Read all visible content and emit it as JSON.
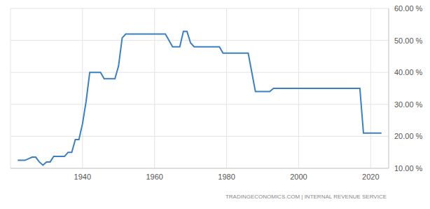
{
  "chart_data": {
    "type": "line",
    "source": "TRADINGECONOMICS.COM | INTERNAL REVENUE SERVICE",
    "x": [
      1922,
      1923,
      1924,
      1925,
      1926,
      1927,
      1928,
      1929,
      1930,
      1931,
      1932,
      1933,
      1934,
      1935,
      1936,
      1937,
      1938,
      1939,
      1940,
      1941,
      1942,
      1943,
      1944,
      1945,
      1946,
      1947,
      1948,
      1949,
      1950,
      1951,
      1952,
      1953,
      1954,
      1955,
      1956,
      1957,
      1958,
      1959,
      1960,
      1961,
      1962,
      1963,
      1964,
      1965,
      1966,
      1967,
      1968,
      1969,
      1970,
      1971,
      1972,
      1973,
      1974,
      1975,
      1976,
      1977,
      1978,
      1979,
      1980,
      1981,
      1982,
      1983,
      1984,
      1985,
      1986,
      1987,
      1988,
      1989,
      1990,
      1991,
      1992,
      1993,
      1994,
      1995,
      1996,
      1997,
      1998,
      1999,
      2000,
      2001,
      2002,
      2003,
      2004,
      2005,
      2006,
      2007,
      2008,
      2009,
      2010,
      2011,
      2012,
      2013,
      2014,
      2015,
      2016,
      2017,
      2018,
      2019,
      2020,
      2021,
      2022,
      2023
    ],
    "values": [
      12.5,
      12.5,
      12.5,
      13,
      13.5,
      13.5,
      12,
      11,
      12,
      12,
      13.75,
      13.75,
      13.75,
      13.75,
      15,
      15,
      19,
      19,
      24,
      31,
      40,
      40,
      40,
      40,
      38,
      38,
      38,
      38,
      42,
      50.75,
      52,
      52,
      52,
      52,
      52,
      52,
      52,
      52,
      52,
      52,
      52,
      52,
      50,
      48,
      48,
      48,
      52.8,
      52.8,
      49.2,
      48,
      48,
      48,
      48,
      48,
      48,
      48,
      48,
      46,
      46,
      46,
      46,
      46,
      46,
      46,
      46,
      40,
      34,
      34,
      34,
      34,
      34,
      35,
      35,
      35,
      35,
      35,
      35,
      35,
      35,
      35,
      35,
      35,
      35,
      35,
      35,
      35,
      35,
      35,
      35,
      35,
      35,
      35,
      35,
      35,
      35,
      35,
      21,
      21,
      21,
      21,
      21,
      21
    ],
    "color": "#3c80c4",
    "xlim": [
      1920,
      2025
    ],
    "xticks": [
      1940,
      1960,
      1980,
      2000,
      2020
    ],
    "ylim": [
      10,
      60
    ],
    "yticks": [
      {
        "value": 10,
        "label": "10.00 %"
      },
      {
        "value": 20,
        "label": "20.00 %"
      },
      {
        "value": 30,
        "label": "30.00 %"
      },
      {
        "value": 40,
        "label": "40.00 %"
      },
      {
        "value": 50,
        "label": "50.00 %"
      },
      {
        "value": 60,
        "label": "60.00 %"
      }
    ],
    "grid": true
  }
}
